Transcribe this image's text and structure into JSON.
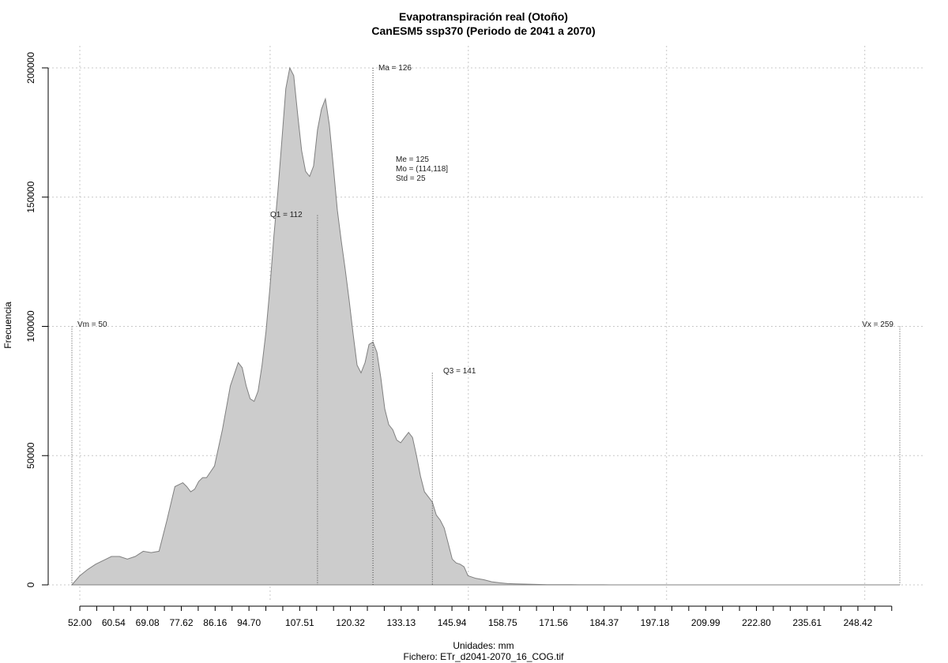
{
  "chart_data": {
    "type": "area",
    "title": "Evapotranspiración real (Otoño)",
    "subtitle": "CanESM5 ssp370 (Periodo de 2041 a 2070)",
    "xlabel": "Unidades: mm",
    "caption": "Fichero: ETr_d2041-2070_16_COG.tif",
    "ylabel": "Frecuencia",
    "xlim": [
      50,
      259
    ],
    "ylim": [
      0,
      200000
    ],
    "x_ticks": [
      "52.00",
      "60.54",
      "69.08",
      "77.62",
      "86.16",
      "94.70",
      "107.51",
      "120.32",
      "133.13",
      "145.94",
      "158.75",
      "171.56",
      "184.37",
      "197.18",
      "209.99",
      "222.80",
      "235.61",
      "248.42"
    ],
    "y_ticks": [
      "0",
      "50000",
      "100000",
      "150000",
      "200000"
    ],
    "grid": true,
    "fill_color": "#cccccc",
    "line_color": "#808080",
    "stats": {
      "vm": "Vm = 50",
      "vx": "Vx = 259",
      "q1": "Q1 = 112",
      "q3": "Q3 = 141",
      "ma": "Ma = 126",
      "me": "Me = 125",
      "mo": "Mo = (114,118]",
      "std": "Std = 25"
    },
    "stat_lines": [
      {
        "key": "vm",
        "x": 50,
        "top": 100000
      },
      {
        "key": "vx",
        "x": 259,
        "top": 100000
      },
      {
        "key": "q1",
        "x": 112,
        "top": 143000
      },
      {
        "key": "q3",
        "x": 141,
        "top": 82000
      },
      {
        "key": "ma",
        "x": 126,
        "top": 200000
      }
    ],
    "x": [
      50,
      52,
      54,
      56,
      58,
      60,
      62,
      64,
      66,
      68,
      70,
      72,
      74,
      76,
      78,
      79,
      80,
      81,
      82,
      83,
      84,
      86,
      88,
      90,
      92,
      93,
      94,
      95,
      96,
      97,
      98,
      99,
      100,
      101,
      102,
      103,
      104,
      105,
      106,
      107,
      108,
      109,
      110,
      111,
      112,
      113,
      114,
      115,
      116,
      117,
      118,
      119,
      120,
      121,
      122,
      123,
      124,
      125,
      126,
      127,
      128,
      129,
      130,
      131,
      132,
      133,
      134,
      135,
      136,
      137,
      138,
      139,
      140,
      141,
      142,
      143,
      144,
      145,
      146,
      147,
      148,
      149,
      150,
      152,
      154,
      156,
      158,
      160,
      162,
      164,
      166,
      168,
      170,
      172,
      174,
      176,
      178,
      180,
      182,
      184,
      186,
      188,
      190,
      192,
      194,
      196,
      198,
      200,
      205,
      210,
      215,
      220,
      230,
      240,
      250,
      259
    ],
    "values": [
      0,
      3500,
      6000,
      8000,
      9500,
      11000,
      11000,
      10000,
      11000,
      13000,
      12500,
      13000,
      25000,
      38000,
      39500,
      38000,
      36000,
      37000,
      40000,
      41500,
      41500,
      46000,
      60000,
      77000,
      86000,
      84000,
      77000,
      72000,
      71000,
      75000,
      85000,
      98000,
      115000,
      135000,
      152000,
      172000,
      192000,
      200000,
      197000,
      182000,
      168000,
      160000,
      158000,
      162000,
      176000,
      184000,
      188000,
      178000,
      162000,
      145000,
      133000,
      122000,
      110000,
      97000,
      85000,
      82000,
      86000,
      93000,
      94000,
      90000,
      80000,
      68000,
      62000,
      60000,
      56000,
      55000,
      57000,
      59000,
      57000,
      50000,
      42000,
      36000,
      34000,
      32000,
      27000,
      25000,
      22000,
      16000,
      10000,
      8500,
      8000,
      7000,
      3500,
      2500,
      2000,
      1200,
      800,
      500,
      400,
      300,
      200,
      150,
      100,
      80,
      60,
      50,
      40,
      30,
      25,
      20,
      15,
      12,
      10,
      8,
      5,
      3,
      2,
      1,
      0,
      0,
      0,
      0,
      0,
      0,
      0,
      0
    ]
  }
}
